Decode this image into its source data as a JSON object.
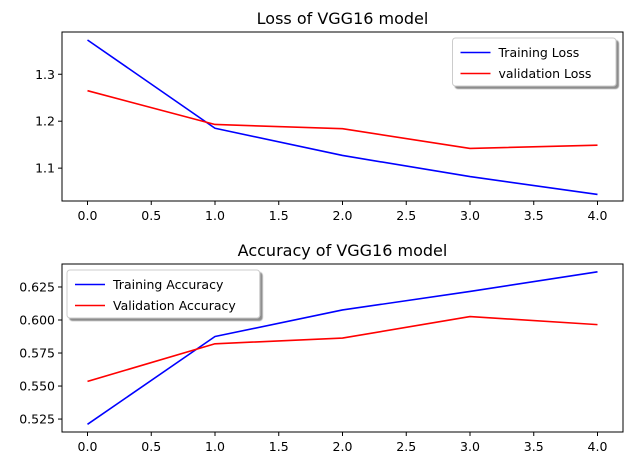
{
  "chart_data": [
    {
      "type": "line",
      "title": "Loss of VGG16 model",
      "xlabel": "",
      "ylabel": "",
      "x": [
        0,
        1,
        2,
        3,
        4
      ],
      "xlim": [
        -0.2,
        4.2
      ],
      "ylim": [
        1.03,
        1.39
      ],
      "xticks": [
        0,
        0.5,
        1,
        1.5,
        2,
        2.5,
        3,
        3.5,
        4
      ],
      "xtick_labels": [
        "0.0",
        "0.5",
        "1.0",
        "1.5",
        "2.0",
        "2.5",
        "3.0",
        "3.5",
        "4.0"
      ],
      "yticks": [
        1.1,
        1.2,
        1.3
      ],
      "ytick_labels": [
        "1.1",
        "1.2",
        "1.3"
      ],
      "grid": false,
      "legend_position": "top-right",
      "series": [
        {
          "name": "Training Loss",
          "color": "#0000ff",
          "values": [
            1.373,
            1.185,
            1.127,
            1.082,
            1.044
          ]
        },
        {
          "name": "validation Loss",
          "color": "#ff0000",
          "values": [
            1.265,
            1.193,
            1.184,
            1.142,
            1.149
          ]
        }
      ]
    },
    {
      "type": "line",
      "title": "Accuracy of VGG16 model",
      "xlabel": "",
      "ylabel": "",
      "x": [
        0,
        1,
        2,
        3,
        4
      ],
      "xlim": [
        -0.2,
        4.2
      ],
      "ylim": [
        0.5152,
        0.6424
      ],
      "xticks": [
        0,
        0.5,
        1,
        1.5,
        2,
        2.5,
        3,
        3.5,
        4
      ],
      "xtick_labels": [
        "0.0",
        "0.5",
        "1.0",
        "1.5",
        "2.0",
        "2.5",
        "3.0",
        "3.5",
        "4.0"
      ],
      "yticks": [
        0.525,
        0.55,
        0.575,
        0.6,
        0.625
      ],
      "ytick_labels": [
        "0.525",
        "0.550",
        "0.575",
        "0.600",
        "0.625"
      ],
      "grid": false,
      "legend_position": "top-left",
      "series": [
        {
          "name": "Training Accuracy",
          "color": "#0000ff",
          "values": [
            0.521,
            0.5875,
            0.6076,
            0.6216,
            0.6365
          ]
        },
        {
          "name": "Validation Accuracy",
          "color": "#ff0000",
          "values": [
            0.5535,
            0.582,
            0.5863,
            0.6026,
            0.5965
          ]
        }
      ]
    }
  ]
}
